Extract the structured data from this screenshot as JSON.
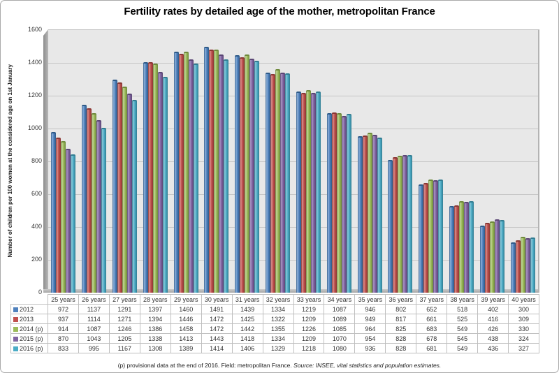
{
  "chart": {
    "footer_plain": "(p) provisional data at the end of 2016. Field: metropolitan France. ",
    "footer_source": "Source:  INSEE,  vital statistics  and population estimates."
  },
  "chart_data": {
    "type": "bar",
    "title": "Fertility rates by detailed age of the mother, metropolitan France",
    "xlabel": "",
    "ylabel": "Number of children per 100 women at the considered age on 1st January",
    "ylim": [
      0,
      1600
    ],
    "ytick_step": 200,
    "grid": true,
    "legend_position": "table-below-left-column",
    "categories": [
      "25 years",
      "26 years",
      "27 years",
      "28 years",
      "29 years",
      "30 years",
      "31 years",
      "32 years",
      "33 years",
      "34 years",
      "35 years",
      "36 years",
      "37 years",
      "38 years",
      "39 years",
      "40 years"
    ],
    "series": [
      {
        "name": "2012",
        "color": "#4F81BD",
        "light": "#8FB2DB",
        "dark": "#2E5A88",
        "values": [
          972,
          1137,
          1291,
          1397,
          1460,
          1491,
          1439,
          1334,
          1219,
          1087,
          946,
          802,
          652,
          518,
          402,
          300
        ]
      },
      {
        "name": "2013",
        "color": "#C0504D",
        "light": "#DA918F",
        "dark": "#8B3734",
        "values": [
          937,
          1114,
          1271,
          1394,
          1446,
          1472,
          1425,
          1322,
          1209,
          1089,
          949,
          817,
          661,
          525,
          416,
          309
        ]
      },
      {
        "name": "2014 (p)",
        "color": "#9BBB59",
        "light": "#C3D69B",
        "dark": "#6F8A3C",
        "values": [
          914,
          1087,
          1246,
          1386,
          1458,
          1472,
          1442,
          1355,
          1226,
          1085,
          964,
          825,
          683,
          549,
          426,
          330
        ]
      },
      {
        "name": "2015 (p)",
        "color": "#8064A2",
        "light": "#AC97C5",
        "dark": "#5B4675",
        "values": [
          870,
          1043,
          1205,
          1338,
          1413,
          1443,
          1418,
          1334,
          1209,
          1070,
          954,
          828,
          678,
          545,
          438,
          324
        ]
      },
      {
        "name": "2016 (p)",
        "color": "#4BACC6",
        "light": "#8CC9DA",
        "dark": "#327D92",
        "values": [
          833,
          995,
          1167,
          1308,
          1389,
          1414,
          1406,
          1329,
          1218,
          1080,
          936,
          828,
          681,
          549,
          436,
          327
        ]
      }
    ]
  }
}
